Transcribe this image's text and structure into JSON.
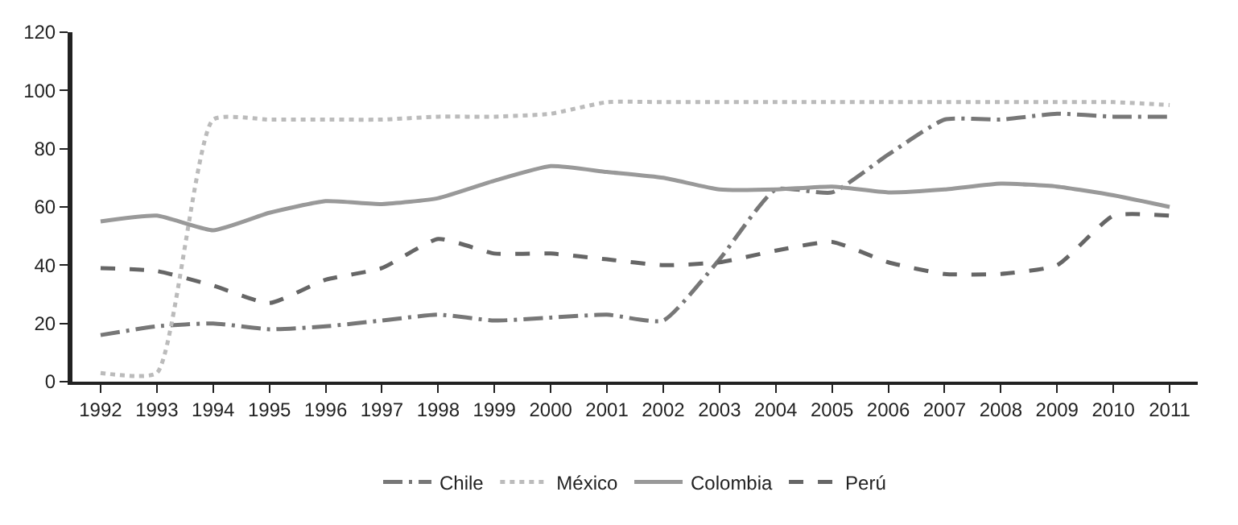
{
  "chart_data": {
    "type": "line",
    "categories": [
      "1992",
      "1993",
      "1994",
      "1995",
      "1996",
      "1997",
      "1998",
      "1999",
      "2000",
      "2001",
      "2002",
      "2003",
      "2004",
      "2005",
      "2006",
      "2007",
      "2008",
      "2009",
      "2010",
      "2011"
    ],
    "series": [
      {
        "name": "Chile",
        "color": "#777777",
        "line_style": "dashdot",
        "values": [
          16,
          19,
          20,
          18,
          19,
          21,
          23,
          21,
          22,
          23,
          21,
          42,
          66,
          65,
          78,
          90,
          90,
          92,
          91,
          91
        ]
      },
      {
        "name": "México",
        "color": "#bbbbbb",
        "line_style": "dotted",
        "values": [
          3,
          3,
          90,
          90,
          90,
          90,
          91,
          91,
          92,
          96,
          96,
          96,
          96,
          96,
          96,
          96,
          96,
          96,
          96,
          95
        ]
      },
      {
        "name": "Colombia",
        "color": "#999999",
        "line_style": "solid",
        "values": [
          55,
          57,
          52,
          58,
          62,
          61,
          63,
          69,
          74,
          72,
          70,
          66,
          66,
          67,
          65,
          66,
          68,
          67,
          64,
          60
        ]
      },
      {
        "name": "Perú",
        "color": "#666666",
        "line_style": "dashed",
        "values": [
          39,
          38,
          33,
          27,
          35,
          39,
          49,
          44,
          44,
          42,
          40,
          41,
          45,
          48,
          41,
          37,
          37,
          40,
          57,
          57
        ]
      }
    ],
    "ylim": [
      0,
      120
    ],
    "yticks": [
      0,
      20,
      40,
      60,
      80,
      100,
      120
    ],
    "legend": "bottom",
    "marker": "none"
  }
}
